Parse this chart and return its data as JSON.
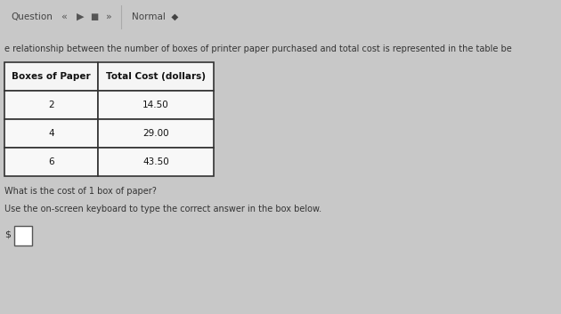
{
  "bg_color": "#c8c8c8",
  "content_bg": "#e8e8e8",
  "toolbar_bg": "#f2f2f2",
  "toolbar_text": "Question",
  "toolbar_mode": "Normal ◆",
  "blue_bar_color": "#5b9bd5",
  "blue_sep_color": "#5b9bd5",
  "intro_text": "e relationship between the number of boxes of printer paper purchased and total cost is represented in the table be",
  "table_headers": [
    "Boxes of Paper",
    "Total Cost (dollars)"
  ],
  "table_rows": [
    [
      "2",
      "14.50"
    ],
    [
      "4",
      "29.00"
    ],
    [
      "6",
      "43.50"
    ]
  ],
  "question_text": "What is the cost of 1 box of paper?",
  "instruction_text": "Use the on-screen keyboard to type the correct answer in the box below.",
  "dollar_label": "$",
  "header_fontsize": 7.5,
  "body_fontsize": 7.5,
  "intro_fontsize": 7.0,
  "question_fontsize": 7.0,
  "instruction_fontsize": 7.0,
  "toolbar_fontsize": 7.5
}
